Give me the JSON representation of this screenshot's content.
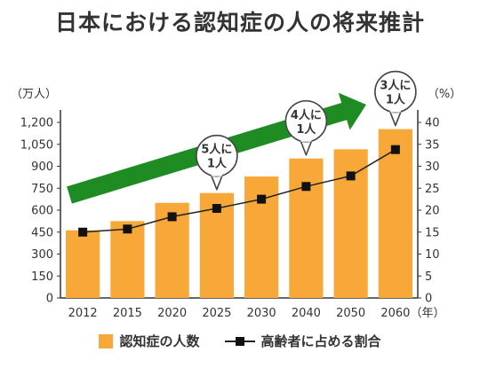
{
  "title": "日本における認知症の人の将来推計",
  "colors": {
    "bar": "#F7A838",
    "line": "#222222",
    "marker": "#111111",
    "arrow": "#1E8C23",
    "axis": "#333333",
    "grid": "#DDDDDD"
  },
  "chart_data": {
    "type": "bar",
    "categories": [
      "2012",
      "2015",
      "2020",
      "2025",
      "2030",
      "2040",
      "2050",
      "2060"
    ],
    "xunit": "（年）",
    "series": [
      {
        "name": "認知症の人数",
        "type": "bar",
        "axis": "left",
        "values": [
          462,
          525,
          650,
          717,
          830,
          953,
          1016,
          1154
        ]
      },
      {
        "name": "高齢者に占める割合",
        "type": "line",
        "axis": "right",
        "values": [
          15,
          15.7,
          18.5,
          20.4,
          22.5,
          25.4,
          27.8,
          33.8
        ]
      }
    ],
    "y_left": {
      "unit": "（万人）",
      "ylim": [
        0,
        1200
      ],
      "ticks": [
        0,
        150,
        300,
        450,
        600,
        750,
        900,
        1050,
        1200
      ],
      "tick_labels": [
        "0",
        "150",
        "300",
        "450",
        "600",
        "750",
        "900",
        "1,050",
        "1,200"
      ]
    },
    "y_right": {
      "unit": "（%）",
      "ylim": [
        0,
        40
      ],
      "ticks": [
        0,
        5,
        10,
        15,
        20,
        25,
        30,
        35,
        40
      ],
      "tick_labels": [
        "0",
        "5",
        "10",
        "15",
        "20",
        "25",
        "30",
        "35",
        "40"
      ]
    },
    "grid": false,
    "legend_position": "bottom",
    "annotations": [
      {
        "category": "2025",
        "lines": [
          "5人に",
          "1人"
        ]
      },
      {
        "category": "2040",
        "lines": [
          "4人に",
          "1人"
        ]
      },
      {
        "category": "2060",
        "lines": [
          "3人に",
          "1人"
        ]
      }
    ]
  }
}
